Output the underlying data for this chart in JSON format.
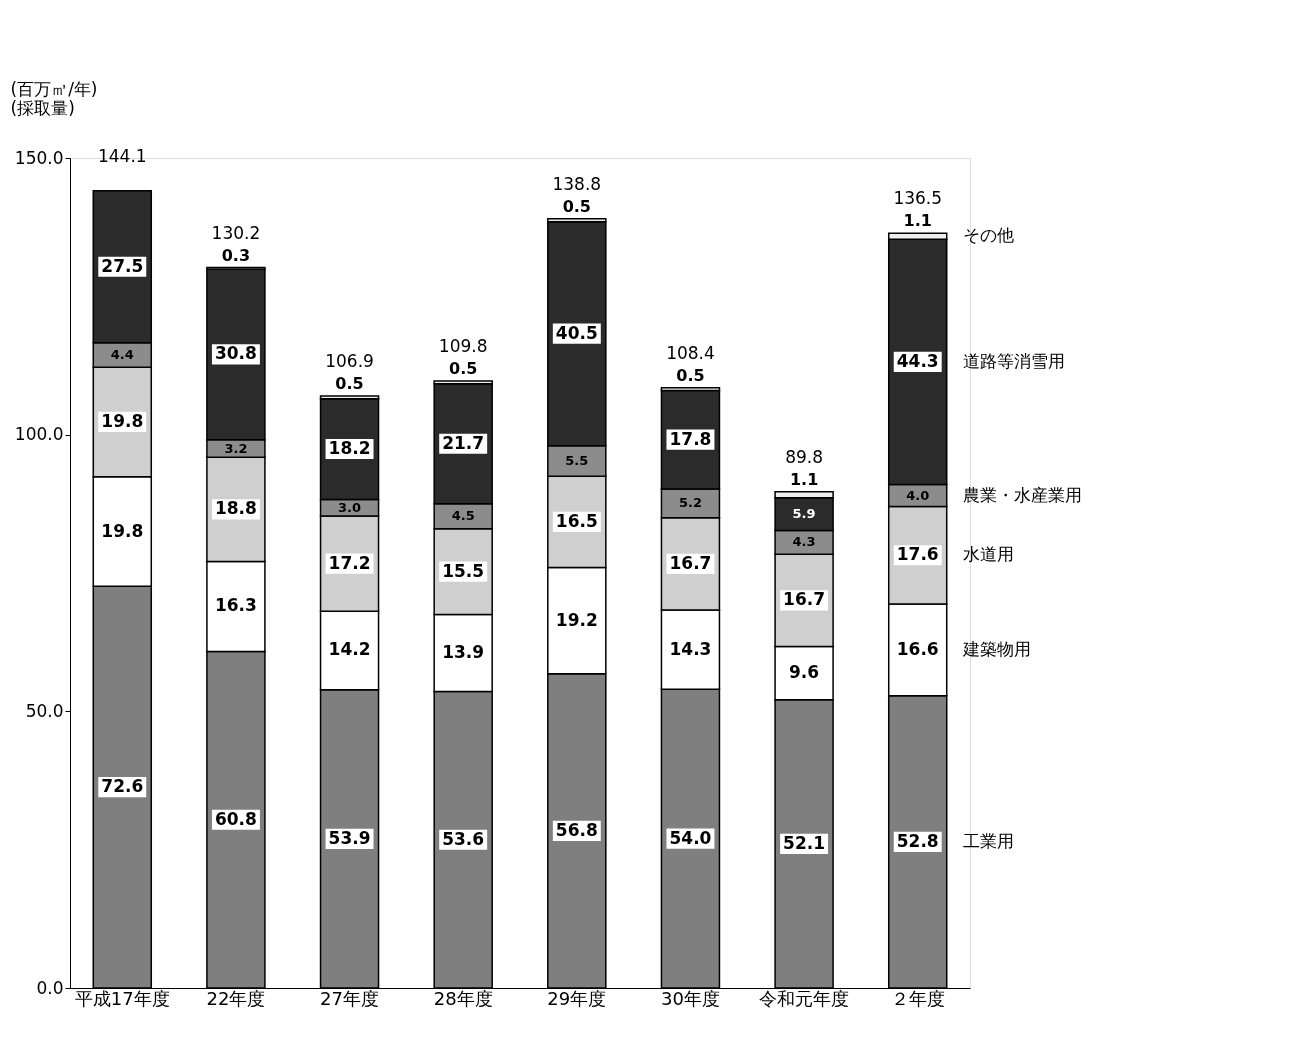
{
  "chart_data": {
    "type": "bar",
    "stacked": true,
    "ylabel": "(百万㎥/年)\n(採取量)",
    "categories": [
      "平成17年度",
      "22年度",
      "27年度",
      "28年度",
      "29年度",
      "30年度",
      "令和元年度",
      "２年度"
    ],
    "series": [
      {
        "name": "工業用",
        "color": "#7f7f7f",
        "values": [
          72.6,
          60.8,
          53.9,
          53.6,
          56.8,
          54.0,
          52.1,
          52.8
        ],
        "value_labels": [
          "72.6",
          "60.8",
          "53.9",
          "53.6",
          "56.8",
          "54.0",
          "52.1",
          "52.8"
        ]
      },
      {
        "name": "建築物用",
        "color": "#ffffff",
        "values": [
          19.8,
          16.3,
          14.2,
          13.9,
          19.2,
          14.3,
          9.6,
          16.6
        ],
        "value_labels": [
          "19.8",
          "16.3",
          "14.2",
          "13.9",
          "19.2",
          "14.3",
          "9.6",
          "16.6"
        ]
      },
      {
        "name": "水道用",
        "color": "#cfcfcf",
        "values": [
          19.8,
          18.8,
          17.2,
          15.5,
          16.5,
          16.7,
          16.7,
          17.6
        ],
        "value_labels": [
          "19.8",
          "18.8",
          "17.2",
          "15.5",
          "16.5",
          "16.7",
          "16.7",
          "17.6"
        ]
      },
      {
        "name": "農業・水産業用",
        "color": "#8c8c8c",
        "values": [
          4.4,
          3.2,
          3.0,
          4.5,
          5.5,
          5.2,
          4.3,
          4.0
        ],
        "value_labels": [
          "4.4",
          "3.2",
          "3.0",
          "4.5",
          "5.5",
          "5.2",
          "4.3",
          "4.0"
        ]
      },
      {
        "name": "道路等消雪用",
        "color": "#2b2b2b",
        "values": [
          27.5,
          30.8,
          18.2,
          21.7,
          40.5,
          17.8,
          5.9,
          44.3
        ],
        "value_labels": [
          "27.5",
          "30.8",
          "18.2",
          "21.7",
          "40.5",
          "17.8",
          "5.9",
          "44.3"
        ]
      },
      {
        "name": "その他",
        "color": "#eeeeee",
        "values": [
          null,
          0.3,
          0.5,
          0.5,
          0.5,
          0.5,
          1.1,
          1.1
        ],
        "value_labels": [
          null,
          "0.3",
          "0.5",
          "0.5",
          "0.5",
          "0.5",
          "1.1",
          "1.1"
        ]
      }
    ],
    "totals": [
      "144.1",
      "130.2",
      "106.9",
      "109.8",
      "138.8",
      "108.4",
      "89.8",
      "136.5"
    ],
    "ylim": [
      0,
      150
    ],
    "yticks": [
      {
        "value": 0,
        "label": "0.0"
      },
      {
        "value": 50,
        "label": "50.0"
      },
      {
        "value": 100,
        "label": "100.0"
      },
      {
        "value": 150,
        "label": "150.0"
      }
    ]
  }
}
